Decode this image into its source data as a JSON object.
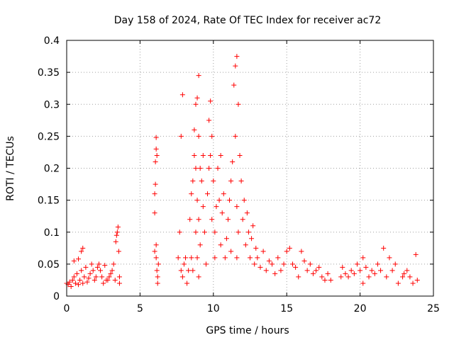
{
  "chart_data": {
    "type": "scatter",
    "title": "Day 158 of 2024, Rate Of TEC Index for receiver ac72",
    "xlabel": "GPS time / hours",
    "ylabel": "ROTI / TECUs",
    "xlim": [
      0,
      25
    ],
    "ylim": [
      0,
      0.4
    ],
    "xticks": [
      0,
      5,
      10,
      15,
      20,
      25
    ],
    "yticks": [
      0,
      0.05,
      0.1,
      0.15,
      0.2,
      0.25,
      0.3,
      0.35,
      0.4
    ],
    "xtick_labels": [
      "0",
      "5",
      "10",
      "15",
      "20",
      "25"
    ],
    "ytick_labels": [
      "0",
      "0.05",
      "0.1",
      "0.15",
      "0.2",
      "0.25",
      "0.3",
      "0.35",
      "0.4"
    ],
    "grid": true,
    "marker": "+",
    "color": "#ff0000",
    "series": [
      {
        "name": "ROTI",
        "points": [
          [
            0.0,
            0.02
          ],
          [
            0.1,
            0.018
          ],
          [
            0.2,
            0.022
          ],
          [
            0.3,
            0.015
          ],
          [
            0.4,
            0.025
          ],
          [
            0.5,
            0.03
          ],
          [
            0.5,
            0.055
          ],
          [
            0.6,
            0.02
          ],
          [
            0.7,
            0.035
          ],
          [
            0.8,
            0.018
          ],
          [
            0.8,
            0.058
          ],
          [
            0.9,
            0.025
          ],
          [
            1.0,
            0.04
          ],
          [
            1.0,
            0.07
          ],
          [
            1.1,
            0.075
          ],
          [
            1.1,
            0.02
          ],
          [
            1.2,
            0.03
          ],
          [
            1.3,
            0.045
          ],
          [
            1.4,
            0.022
          ],
          [
            1.5,
            0.028
          ],
          [
            1.6,
            0.035
          ],
          [
            1.7,
            0.05
          ],
          [
            1.8,
            0.04
          ],
          [
            1.9,
            0.025
          ],
          [
            2.0,
            0.03
          ],
          [
            2.1,
            0.045
          ],
          [
            2.2,
            0.05
          ],
          [
            2.3,
            0.04
          ],
          [
            2.4,
            0.03
          ],
          [
            2.5,
            0.02
          ],
          [
            2.6,
            0.048
          ],
          [
            2.7,
            0.025
          ],
          [
            2.8,
            0.025
          ],
          [
            2.9,
            0.03
          ],
          [
            3.0,
            0.035
          ],
          [
            3.1,
            0.04
          ],
          [
            3.2,
            0.05
          ],
          [
            3.3,
            0.025
          ],
          [
            3.35,
            0.085
          ],
          [
            3.4,
            0.095
          ],
          [
            3.45,
            0.1
          ],
          [
            3.5,
            0.108
          ],
          [
            3.55,
            0.07
          ],
          [
            3.6,
            0.02
          ],
          [
            3.6,
            0.03
          ],
          [
            6.0,
            0.13
          ],
          [
            6.0,
            0.16
          ],
          [
            6.05,
            0.175
          ],
          [
            6.05,
            0.21
          ],
          [
            6.1,
            0.23
          ],
          [
            6.1,
            0.248
          ],
          [
            6.15,
            0.22
          ],
          [
            6.1,
            0.08
          ],
          [
            6.1,
            0.06
          ],
          [
            6.15,
            0.04
          ],
          [
            6.2,
            0.02
          ],
          [
            6.2,
            0.03
          ],
          [
            6.25,
            0.05
          ],
          [
            6.0,
            0.07
          ],
          [
            7.6,
            0.06
          ],
          [
            7.7,
            0.1
          ],
          [
            7.8,
            0.04
          ],
          [
            7.8,
            0.25
          ],
          [
            7.9,
            0.315
          ],
          [
            7.9,
            0.03
          ],
          [
            8.0,
            0.05
          ],
          [
            8.1,
            0.06
          ],
          [
            8.2,
            0.02
          ],
          [
            8.3,
            0.04
          ],
          [
            8.4,
            0.12
          ],
          [
            8.5,
            0.16
          ],
          [
            8.5,
            0.06
          ],
          [
            8.6,
            0.18
          ],
          [
            8.6,
            0.04
          ],
          [
            8.7,
            0.26
          ],
          [
            8.7,
            0.22
          ],
          [
            8.8,
            0.3
          ],
          [
            8.8,
            0.2
          ],
          [
            8.8,
            0.1
          ],
          [
            8.9,
            0.31
          ],
          [
            8.9,
            0.15
          ],
          [
            8.9,
            0.06
          ],
          [
            9.0,
            0.345
          ],
          [
            9.0,
            0.25
          ],
          [
            9.0,
            0.12
          ],
          [
            9.0,
            0.03
          ],
          [
            9.1,
            0.2
          ],
          [
            9.1,
            0.08
          ],
          [
            9.2,
            0.18
          ],
          [
            9.3,
            0.22
          ],
          [
            9.3,
            0.14
          ],
          [
            9.4,
            0.1
          ],
          [
            9.5,
            0.05
          ],
          [
            9.6,
            0.16
          ],
          [
            9.7,
            0.275
          ],
          [
            9.7,
            0.2
          ],
          [
            9.8,
            0.305
          ],
          [
            9.8,
            0.22
          ],
          [
            9.9,
            0.25
          ],
          [
            9.9,
            0.12
          ],
          [
            10.0,
            0.18
          ],
          [
            10.1,
            0.1
          ],
          [
            10.1,
            0.06
          ],
          [
            10.2,
            0.14
          ],
          [
            10.3,
            0.2
          ],
          [
            10.4,
            0.15
          ],
          [
            10.5,
            0.22
          ],
          [
            10.5,
            0.08
          ],
          [
            10.6,
            0.13
          ],
          [
            10.7,
            0.16
          ],
          [
            10.8,
            0.06
          ],
          [
            10.9,
            0.09
          ],
          [
            11.0,
            0.12
          ],
          [
            11.1,
            0.15
          ],
          [
            11.2,
            0.18
          ],
          [
            11.2,
            0.07
          ],
          [
            11.3,
            0.21
          ],
          [
            11.4,
            0.33
          ],
          [
            11.5,
            0.36
          ],
          [
            11.5,
            0.25
          ],
          [
            11.6,
            0.375
          ],
          [
            11.6,
            0.14
          ],
          [
            11.6,
            0.06
          ],
          [
            11.7,
            0.3
          ],
          [
            11.7,
            0.1
          ],
          [
            11.8,
            0.22
          ],
          [
            11.9,
            0.18
          ],
          [
            12.0,
            0.12
          ],
          [
            12.1,
            0.15
          ],
          [
            12.2,
            0.08
          ],
          [
            12.3,
            0.13
          ],
          [
            12.4,
            0.1
          ],
          [
            12.5,
            0.06
          ],
          [
            12.6,
            0.09
          ],
          [
            12.7,
            0.11
          ],
          [
            12.8,
            0.05
          ],
          [
            12.9,
            0.075
          ],
          [
            13.0,
            0.06
          ],
          [
            13.2,
            0.045
          ],
          [
            13.4,
            0.07
          ],
          [
            13.6,
            0.04
          ],
          [
            13.8,
            0.055
          ],
          [
            14.0,
            0.05
          ],
          [
            14.2,
            0.035
          ],
          [
            14.4,
            0.06
          ],
          [
            14.6,
            0.04
          ],
          [
            14.8,
            0.05
          ],
          [
            15.0,
            0.07
          ],
          [
            15.2,
            0.075
          ],
          [
            15.4,
            0.05
          ],
          [
            15.6,
            0.045
          ],
          [
            15.8,
            0.03
          ],
          [
            16.0,
            0.07
          ],
          [
            16.2,
            0.055
          ],
          [
            16.4,
            0.04
          ],
          [
            16.6,
            0.05
          ],
          [
            16.8,
            0.035
          ],
          [
            17.0,
            0.04
          ],
          [
            17.2,
            0.045
          ],
          [
            17.4,
            0.03
          ],
          [
            17.6,
            0.025
          ],
          [
            17.8,
            0.035
          ],
          [
            18.0,
            0.025
          ],
          [
            18.7,
            0.03
          ],
          [
            18.8,
            0.045
          ],
          [
            19.0,
            0.035
          ],
          [
            19.2,
            0.03
          ],
          [
            19.4,
            0.04
          ],
          [
            19.6,
            0.035
          ],
          [
            19.8,
            0.05
          ],
          [
            20.0,
            0.04
          ],
          [
            20.2,
            0.06
          ],
          [
            20.2,
            0.02
          ],
          [
            20.4,
            0.045
          ],
          [
            20.6,
            0.03
          ],
          [
            20.8,
            0.04
          ],
          [
            21.0,
            0.035
          ],
          [
            21.2,
            0.05
          ],
          [
            21.4,
            0.04
          ],
          [
            21.6,
            0.075
          ],
          [
            21.8,
            0.03
          ],
          [
            22.0,
            0.06
          ],
          [
            22.2,
            0.04
          ],
          [
            22.4,
            0.05
          ],
          [
            22.6,
            0.02
          ],
          [
            22.9,
            0.03
          ],
          [
            23.0,
            0.035
          ],
          [
            23.2,
            0.04
          ],
          [
            23.4,
            0.03
          ],
          [
            23.6,
            0.02
          ],
          [
            23.8,
            0.065
          ],
          [
            23.9,
            0.025
          ]
        ]
      }
    ]
  }
}
